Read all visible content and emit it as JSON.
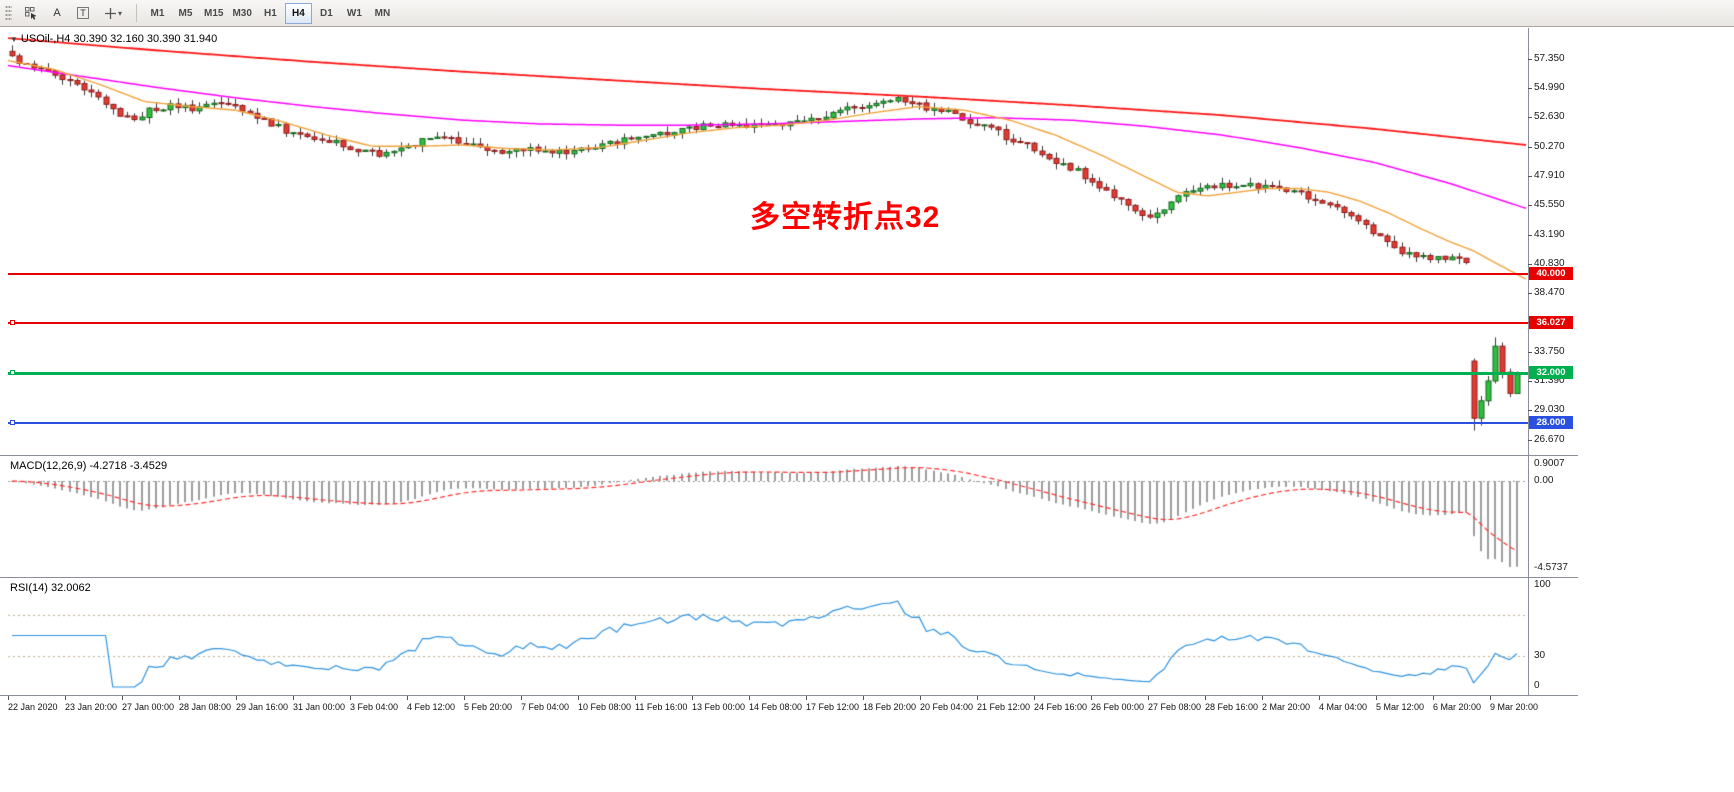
{
  "toolbar": {
    "tool_labels": {
      "arrow": "A",
      "text": "T"
    },
    "timeframes": [
      "M1",
      "M5",
      "M15",
      "M30",
      "H1",
      "H4",
      "D1",
      "W1",
      "MN"
    ],
    "active_timeframe": "H4"
  },
  "icons": {
    "collapse": "▼",
    "dropdown": "▾"
  },
  "chart_data": {
    "type": "candlestick",
    "symbol": "USOil-",
    "period": "H4",
    "symbol_line": "USOil-,H4  30.390 32.160 30.390 31.940",
    "last_ohlc": {
      "open": 30.39,
      "high": 32.16,
      "low": 30.39,
      "close": 31.94
    },
    "annotation": {
      "text": "多空转折点32",
      "color": "#ff0000"
    },
    "ylim": [
      26.0,
      59.5
    ],
    "bars": 210,
    "price_axis_labels": [
      "57.350",
      "54.990",
      "52.630",
      "50.270",
      "47.910",
      "45.550",
      "43.190",
      "40.830",
      "38.470",
      "36.110",
      "33.750",
      "31.390",
      "29.030",
      "26.670"
    ],
    "time_axis_labels": [
      "22 Jan 2020",
      "23 Jan 20:00",
      "27 Jan 00:00",
      "28 Jan 08:00",
      "29 Jan 16:00",
      "31 Jan 00:00",
      "3 Feb 04:00",
      "4 Feb 12:00",
      "5 Feb 20:00",
      "7 Feb 04:00",
      "10 Feb 08:00",
      "11 Feb 16:00",
      "13 Feb 00:00",
      "14 Feb 08:00",
      "17 Feb 12:00",
      "18 Feb 20:00",
      "20 Feb 04:00",
      "21 Feb 12:00",
      "24 Feb 16:00",
      "26 Feb 00:00",
      "27 Feb 08:00",
      "28 Feb 16:00",
      "2 Mar 20:00",
      "4 Mar 04:00",
      "5 Mar 12:00",
      "6 Mar 20:00",
      "9 Mar 20:00"
    ],
    "hlines": [
      {
        "price": 40.0,
        "label": "40.000",
        "color": "#e60000",
        "thickness": 2,
        "handle": false
      },
      {
        "price": 36.027,
        "label": "36.027",
        "color": "#e60000",
        "thickness": 2,
        "handle": true
      },
      {
        "price": 32.0,
        "label": "32.000",
        "color": "#00b050",
        "thickness": 3,
        "handle": true
      },
      {
        "price": 28.0,
        "label": "28.000",
        "color": "#2b50e0",
        "thickness": 2,
        "handle": true
      }
    ],
    "candle_colors": {
      "up_fill": "#2fbf3f",
      "up_stroke": "#14681f",
      "down_fill": "#e23b30",
      "down_stroke": "#8f1d1d",
      "wick": "#3a3a3a"
    },
    "close_path": [
      [
        0,
        57.4
      ],
      [
        0.01,
        57.0
      ],
      [
        0.025,
        56.2
      ],
      [
        0.036,
        55.6
      ],
      [
        0.048,
        54.9
      ],
      [
        0.06,
        54.0
      ],
      [
        0.07,
        52.9
      ],
      [
        0.08,
        52.4
      ],
      [
        0.095,
        53.4
      ],
      [
        0.11,
        53.6
      ],
      [
        0.125,
        53.2
      ],
      [
        0.135,
        54.0
      ],
      [
        0.148,
        53.7
      ],
      [
        0.162,
        52.8
      ],
      [
        0.175,
        52.0
      ],
      [
        0.186,
        51.3
      ],
      [
        0.2,
        50.9
      ],
      [
        0.215,
        50.6
      ],
      [
        0.228,
        50.0
      ],
      [
        0.24,
        49.7
      ],
      [
        0.252,
        49.8
      ],
      [
        0.265,
        50.4
      ],
      [
        0.28,
        51.0
      ],
      [
        0.292,
        50.8
      ],
      [
        0.305,
        50.5
      ],
      [
        0.318,
        50.1
      ],
      [
        0.33,
        49.9
      ],
      [
        0.342,
        50.2
      ],
      [
        0.355,
        50.0
      ],
      [
        0.368,
        49.9
      ],
      [
        0.38,
        50.2
      ],
      [
        0.392,
        50.4
      ],
      [
        0.405,
        50.8
      ],
      [
        0.418,
        51.3
      ],
      [
        0.43,
        51.2
      ],
      [
        0.442,
        51.6
      ],
      [
        0.455,
        51.9
      ],
      [
        0.468,
        52.0
      ],
      [
        0.48,
        52.2
      ],
      [
        0.492,
        51.9
      ],
      [
        0.505,
        52.1
      ],
      [
        0.518,
        52.2
      ],
      [
        0.53,
        52.5
      ],
      [
        0.545,
        53.0
      ],
      [
        0.558,
        53.4
      ],
      [
        0.57,
        53.8
      ],
      [
        0.582,
        54.1
      ],
      [
        0.592,
        53.9
      ],
      [
        0.605,
        53.5
      ],
      [
        0.618,
        53.2
      ],
      [
        0.63,
        52.6
      ],
      [
        0.64,
        52.1
      ],
      [
        0.652,
        51.6
      ],
      [
        0.663,
        50.9
      ],
      [
        0.675,
        50.3
      ],
      [
        0.687,
        49.5
      ],
      [
        0.7,
        48.8
      ],
      [
        0.712,
        48.0
      ],
      [
        0.724,
        47.0
      ],
      [
        0.736,
        46.0
      ],
      [
        0.748,
        45.0
      ],
      [
        0.757,
        44.4
      ],
      [
        0.768,
        45.6
      ],
      [
        0.78,
        46.5
      ],
      [
        0.792,
        47.0
      ],
      [
        0.805,
        47.2
      ],
      [
        0.818,
        47.0
      ],
      [
        0.83,
        47.2
      ],
      [
        0.842,
        46.9
      ],
      [
        0.855,
        46.5
      ],
      [
        0.868,
        46.0
      ],
      [
        0.88,
        45.2
      ],
      [
        0.893,
        44.3
      ],
      [
        0.906,
        43.2
      ],
      [
        0.918,
        42.2
      ],
      [
        0.93,
        41.5
      ],
      [
        0.945,
        41.3
      ],
      [
        0.96,
        41.1
      ],
      [
        0.968,
        41.0
      ]
    ],
    "tail_candles": [
      [
        33.0,
        33.2,
        27.4,
        28.4
      ],
      [
        28.4,
        30.2,
        27.8,
        29.8
      ],
      [
        29.8,
        31.8,
        29.4,
        31.4
      ],
      [
        31.4,
        34.9,
        31.2,
        34.2
      ],
      [
        34.2,
        34.5,
        31.6,
        32.1
      ],
      [
        32.1,
        32.4,
        30.1,
        30.4
      ],
      [
        30.39,
        32.16,
        30.39,
        31.94
      ]
    ],
    "moving_averages": [
      {
        "name": "ma-slow-red",
        "color": "#ff1414",
        "width": 1.8,
        "path": [
          [
            0,
            59.0
          ],
          [
            0.1,
            58.0
          ],
          [
            0.2,
            57.1
          ],
          [
            0.3,
            56.3
          ],
          [
            0.4,
            55.6
          ],
          [
            0.5,
            54.9
          ],
          [
            0.6,
            54.3
          ],
          [
            0.7,
            53.6
          ],
          [
            0.8,
            52.8
          ],
          [
            0.9,
            51.7
          ],
          [
            1,
            50.4
          ]
        ]
      },
      {
        "name": "ma-mid-magenta",
        "color": "#ff00ff",
        "width": 1.5,
        "path": [
          [
            0,
            56.8
          ],
          [
            0.05,
            55.9
          ],
          [
            0.1,
            55.0
          ],
          [
            0.15,
            54.2
          ],
          [
            0.2,
            53.5
          ],
          [
            0.25,
            52.9
          ],
          [
            0.3,
            52.4
          ],
          [
            0.35,
            52.1
          ],
          [
            0.4,
            52.0
          ],
          [
            0.45,
            52.0
          ],
          [
            0.5,
            52.1
          ],
          [
            0.55,
            52.3
          ],
          [
            0.6,
            52.5
          ],
          [
            0.65,
            52.6
          ],
          [
            0.7,
            52.4
          ],
          [
            0.75,
            51.9
          ],
          [
            0.8,
            51.2
          ],
          [
            0.85,
            50.2
          ],
          [
            0.9,
            49.0
          ],
          [
            0.95,
            47.3
          ],
          [
            1,
            45.3
          ]
        ]
      },
      {
        "name": "ma-fast-orange",
        "color": "#f2a33c",
        "width": 1.4,
        "path": [
          [
            0,
            57.2
          ],
          [
            0.03,
            56.5
          ],
          [
            0.06,
            55.3
          ],
          [
            0.09,
            53.9
          ],
          [
            0.12,
            53.5
          ],
          [
            0.15,
            53.2
          ],
          [
            0.18,
            52.3
          ],
          [
            0.21,
            51.2
          ],
          [
            0.24,
            50.3
          ],
          [
            0.27,
            50.3
          ],
          [
            0.3,
            50.4
          ],
          [
            0.33,
            50.1
          ],
          [
            0.36,
            50.0
          ],
          [
            0.39,
            50.2
          ],
          [
            0.42,
            50.8
          ],
          [
            0.45,
            51.4
          ],
          [
            0.48,
            51.8
          ],
          [
            0.51,
            52.0
          ],
          [
            0.54,
            52.4
          ],
          [
            0.57,
            53.0
          ],
          [
            0.6,
            53.5
          ],
          [
            0.63,
            53.2
          ],
          [
            0.66,
            52.4
          ],
          [
            0.69,
            51.2
          ],
          [
            0.72,
            49.6
          ],
          [
            0.75,
            47.8
          ],
          [
            0.77,
            46.6
          ],
          [
            0.79,
            46.3
          ],
          [
            0.81,
            46.6
          ],
          [
            0.83,
            46.9
          ],
          [
            0.85,
            46.9
          ],
          [
            0.87,
            46.6
          ],
          [
            0.89,
            45.9
          ],
          [
            0.91,
            44.9
          ],
          [
            0.93,
            43.7
          ],
          [
            0.95,
            42.6
          ],
          [
            0.965,
            41.9
          ],
          [
            0.98,
            40.9
          ],
          [
            1,
            39.6
          ]
        ]
      }
    ],
    "macd": {
      "label": "MACD(12,26,9) -4.2718 -3.4529",
      "fast": 12,
      "slow": 26,
      "signal_period": 9,
      "values_text": [
        "-4.2718",
        "-3.4529"
      ],
      "axis_labels": [
        "0.9007",
        "0.00",
        "-4.5737"
      ],
      "histogram_color": "#9e9e9e",
      "signal_color": "#ff3030"
    },
    "rsi": {
      "label": "RSI(14) 32.0062",
      "period": 14,
      "value_text": "32.0062",
      "axis_labels": [
        "100",
        "30",
        "0"
      ],
      "levels": [
        70,
        30
      ],
      "line_color": "#2f93e0",
      "level_color": "#c0b090"
    }
  }
}
